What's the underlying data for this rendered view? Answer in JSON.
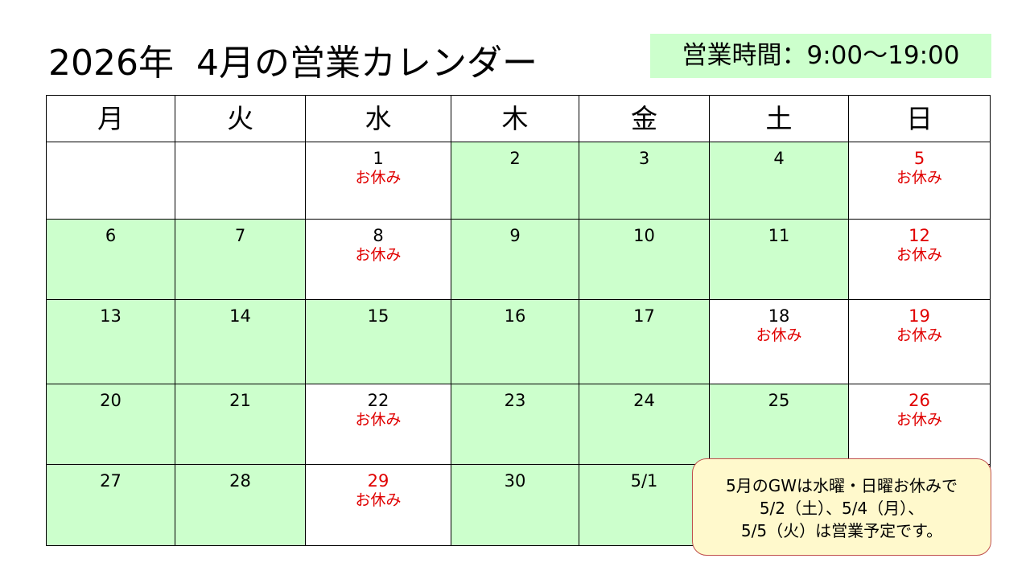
{
  "title": "2026年  4月の営業カレンダー",
  "hours": "営業時間：9:00～19:00",
  "colors": {
    "open": "#ccffcc",
    "holiday_text": "#e00000",
    "note_bg": "#fff9cc",
    "note_border": "#c0504d"
  },
  "weekdays": [
    "月",
    "火",
    "水",
    "木",
    "金",
    "土",
    "日"
  ],
  "closed_label": "お休み",
  "weeks": [
    [
      {
        "day": "",
        "open": false
      },
      {
        "day": "",
        "open": false
      },
      {
        "day": "1",
        "closed": true
      },
      {
        "day": "2",
        "open": true
      },
      {
        "day": "3",
        "open": true
      },
      {
        "day": "4",
        "open": true
      },
      {
        "day": "5",
        "red": true,
        "closed": true
      }
    ],
    [
      {
        "day": "6",
        "open": true
      },
      {
        "day": "7",
        "open": true
      },
      {
        "day": "8",
        "closed": true
      },
      {
        "day": "9",
        "open": true
      },
      {
        "day": "10",
        "open": true
      },
      {
        "day": "11",
        "open": true
      },
      {
        "day": "12",
        "red": true,
        "closed": true
      }
    ],
    [
      {
        "day": "13",
        "open": true
      },
      {
        "day": "14",
        "open": true
      },
      {
        "day": "15",
        "open": true
      },
      {
        "day": "16",
        "open": true
      },
      {
        "day": "17",
        "open": true
      },
      {
        "day": "18",
        "closed": true
      },
      {
        "day": "19",
        "red": true,
        "closed": true
      }
    ],
    [
      {
        "day": "20",
        "open": true
      },
      {
        "day": "21",
        "open": true
      },
      {
        "day": "22",
        "closed": true
      },
      {
        "day": "23",
        "open": true
      },
      {
        "day": "24",
        "open": true
      },
      {
        "day": "25",
        "open": true
      },
      {
        "day": "26",
        "red": true,
        "closed": true
      }
    ],
    [
      {
        "day": "27",
        "open": true
      },
      {
        "day": "28",
        "open": true
      },
      {
        "day": "29",
        "red": true,
        "closed": true
      },
      {
        "day": "30",
        "open": true
      },
      {
        "day": "5/1",
        "open": true
      },
      {
        "day": "",
        "open": false
      },
      {
        "day": "",
        "open": false
      }
    ]
  ],
  "note": [
    "5月のGWは水曜・日曜お休みで",
    "5/2（土）、5/4（月）、",
    "5/5（火）は営業予定です。"
  ]
}
